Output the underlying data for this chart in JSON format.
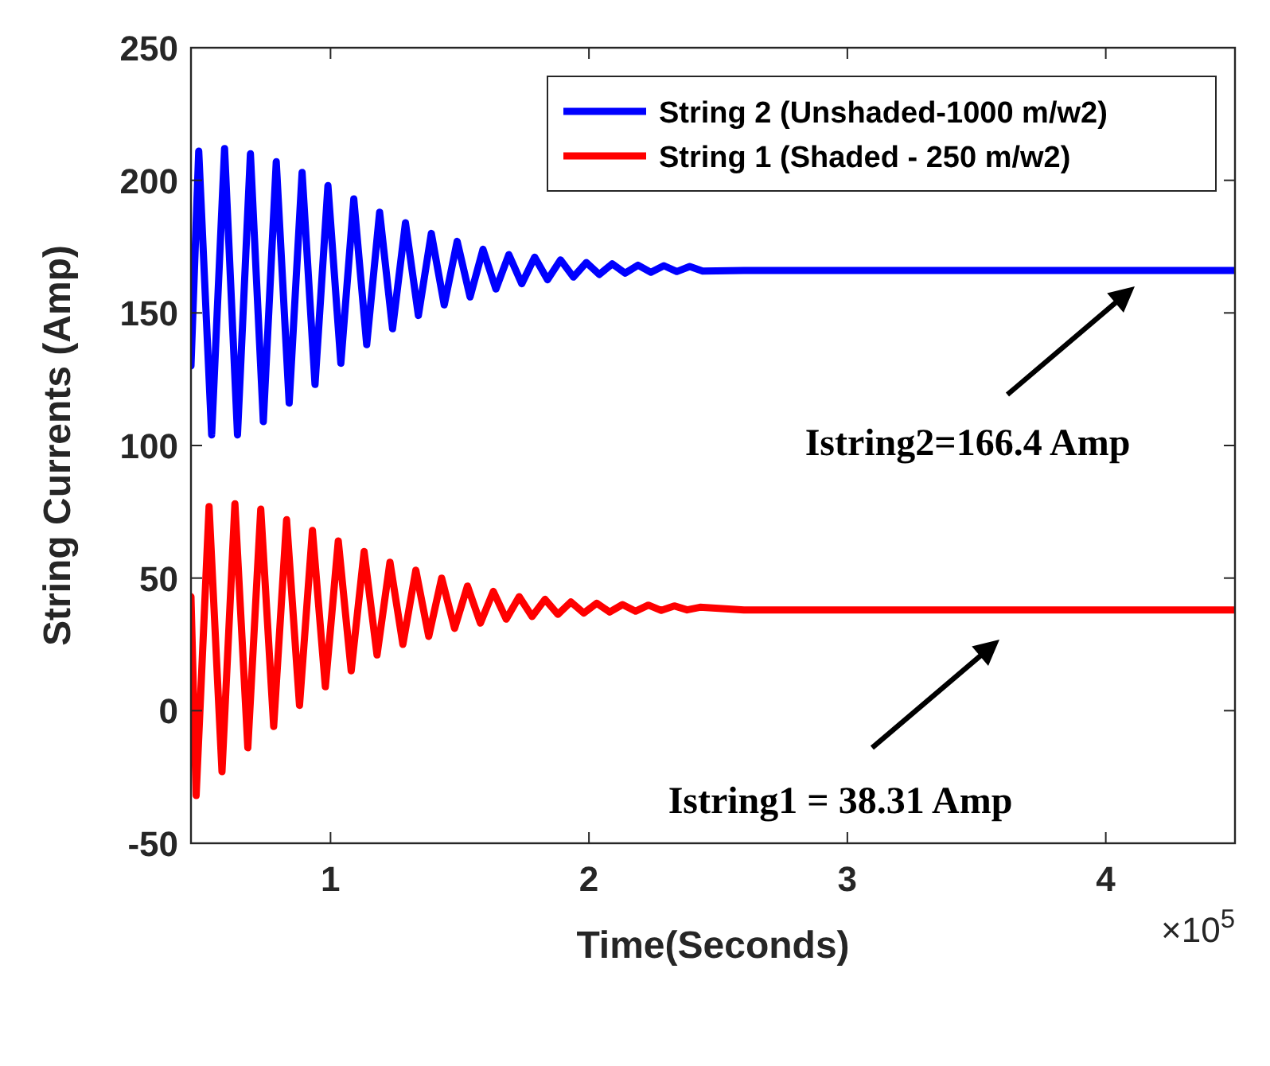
{
  "chart_data": {
    "type": "line",
    "xlabel": "Time(Seconds)",
    "ylabel": "String Currents (Amp)",
    "xlim": [
      0.46,
      4.5
    ],
    "xticks": [
      1,
      2,
      3,
      4
    ],
    "ylim": [
      -50,
      250
    ],
    "yticks": [
      -50,
      0,
      50,
      100,
      150,
      200,
      250
    ],
    "grid": false,
    "legend": "top right",
    "marker": "none",
    "line_style": "solid",
    "series": [
      {
        "name": "String 2 (Unshaded-1000 m/w2)",
        "color": "#0000ff",
        "x": [
          0.46,
          0.49,
          0.54,
          0.59,
          0.64,
          0.69,
          0.74,
          0.79,
          0.84,
          0.89,
          0.94,
          0.99,
          1.04,
          1.09,
          1.14,
          1.19,
          1.24,
          1.29,
          1.34,
          1.39,
          1.44,
          1.49,
          1.54,
          1.59,
          1.64,
          1.69,
          1.74,
          1.79,
          1.84,
          1.89,
          1.94,
          1.99,
          2.04,
          2.09,
          2.14,
          2.19,
          2.24,
          2.29,
          2.34,
          2.39,
          2.44,
          2.6,
          3.0,
          3.5,
          4.0,
          4.5
        ],
        "values": [
          130,
          211,
          104,
          212,
          104,
          210,
          109,
          207,
          116,
          203,
          123,
          198,
          131,
          193,
          138,
          188,
          144,
          184,
          149,
          180,
          153,
          177,
          156,
          174,
          159,
          172,
          161,
          171,
          162.5,
          170,
          163.5,
          169,
          164.5,
          168.5,
          165,
          168,
          165.3,
          167.8,
          165.6,
          167.5,
          165.8,
          166,
          166,
          166,
          166,
          166
        ]
      },
      {
        "name": "String 1 (Shaded - 250 m/w2)",
        "color": "#ff0000",
        "x": [
          0.46,
          0.48,
          0.53,
          0.58,
          0.63,
          0.68,
          0.73,
          0.78,
          0.83,
          0.88,
          0.93,
          0.98,
          1.03,
          1.08,
          1.13,
          1.18,
          1.23,
          1.28,
          1.33,
          1.38,
          1.43,
          1.48,
          1.53,
          1.58,
          1.63,
          1.68,
          1.73,
          1.78,
          1.83,
          1.88,
          1.93,
          1.98,
          2.03,
          2.08,
          2.13,
          2.18,
          2.23,
          2.28,
          2.33,
          2.38,
          2.43,
          2.6,
          3.0,
          3.5,
          4.0,
          4.5
        ],
        "values": [
          43,
          -32,
          77,
          -23,
          78,
          -14,
          76,
          -6,
          72,
          2,
          68,
          9,
          64,
          15,
          60,
          21,
          56,
          25,
          53,
          28,
          50,
          31,
          47,
          33,
          45,
          34.5,
          43,
          35.5,
          42,
          36.3,
          41,
          36.8,
          40.5,
          37.2,
          40,
          37.5,
          39.8,
          37.8,
          39.5,
          38,
          39,
          38,
          38,
          38,
          38,
          38
        ]
      }
    ],
    "annotations": [
      "Istring2=166.4 Amp",
      "Istring1 = 38.31 Amp",
      "×10$^{5}$"
    ]
  }
}
